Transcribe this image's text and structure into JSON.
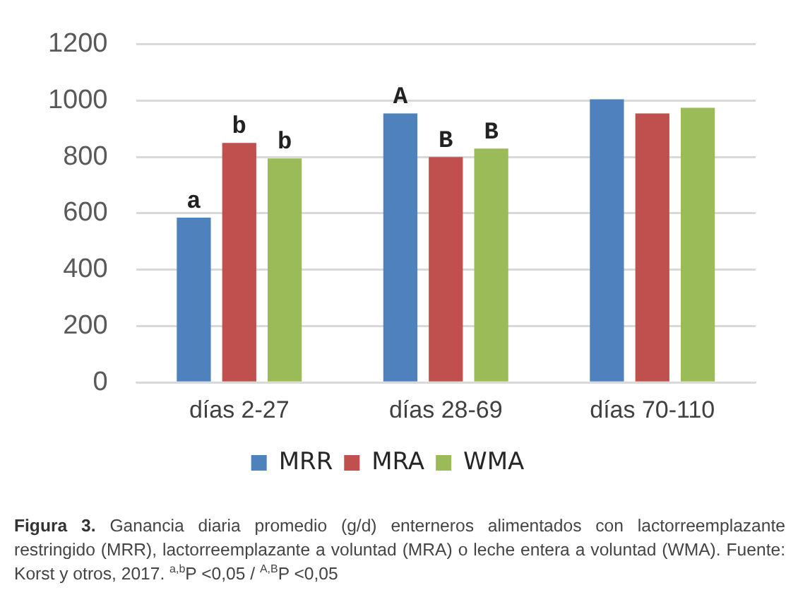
{
  "chart_data": {
    "type": "bar",
    "categories": [
      "días 2-27",
      "días 28-69",
      "días 70-110"
    ],
    "series": [
      {
        "name": "MRR",
        "color": "#4f81bd",
        "values": [
          585,
          955,
          1005
        ],
        "value_labels": [
          "a",
          "A",
          null
        ]
      },
      {
        "name": "MRA",
        "color": "#c0504d",
        "values": [
          850,
          800,
          955
        ],
        "value_labels": [
          "b",
          "B",
          null
        ]
      },
      {
        "name": "WMA",
        "color": "#9bbb59",
        "values": [
          795,
          830,
          975
        ],
        "value_labels": [
          "b",
          "B",
          null
        ]
      }
    ],
    "ylim": [
      0,
      1200
    ],
    "yticks": [
      0,
      200,
      400,
      600,
      800,
      1000,
      1200
    ],
    "grid": "y",
    "legend": "bottom",
    "annotations": [
      "Figura 3.",
      "Ganancia diaria promedio (g/d) enterneros alimentados con lactorreemplazante restringido (MRR), lactorreemplazante a voluntad (MRA) o leche entera a voluntad (WMA). Fuente: Korst y otros, 2017. $^{a,b}$P <0,05  / $^{A,B}$P <0,05"
    ]
  }
}
